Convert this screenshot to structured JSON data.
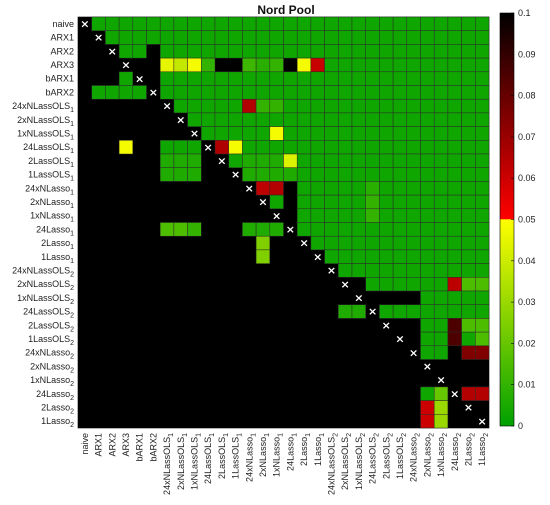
{
  "chart_data": {
    "type": "heatmap",
    "title": "Nord Pool",
    "labels": [
      "naive",
      "ARX1",
      "ARX2",
      "ARX3",
      "bARX1",
      "bARX2",
      "24xNLassOLS_1",
      "2xNLassOLS_1",
      "1xNLassOLS_1",
      "24LassOLS_1",
      "2LassOLS_1",
      "1LassOLS_1",
      "24xNLasso_1",
      "2xNLasso_1",
      "1xNLasso_1",
      "24Lasso_1",
      "2Lasso_1",
      "1Lasso_1",
      "24xNLassOLS_2",
      "2xNLassOLS_2",
      "1xNLassOLS_2",
      "24LassOLS_2",
      "2LassOLS_2",
      "1LassOLS_2",
      "24xNLasso_2",
      "2xNLasso_2",
      "1xNLasso_2",
      "24Lasso_2",
      "2Lasso_2",
      "1Lasso_2"
    ],
    "diagonal_marker": "×",
    "value_range": [
      0,
      0.1
    ],
    "colorbar_ticks": [
      "0",
      "0.01",
      "0.02",
      "0.03",
      "0.04",
      "0.05",
      "0.06",
      "0.07",
      "0.08",
      "0.09",
      "0.1"
    ],
    "colormap": [
      {
        "v": 0.0,
        "color": "#00a000"
      },
      {
        "v": 0.05,
        "color": "#ffff00"
      },
      {
        "v": 0.0501,
        "color": "#ff0000"
      },
      {
        "v": 0.1,
        "color": "#000000"
      }
    ],
    "insignificant_color": "#000000",
    "rows": [
      [
        "x",
        "0.003",
        "0.003",
        "0.003",
        "0.003",
        "0.003",
        "0.003",
        "0.003",
        "0.003",
        "0.003",
        "0.003",
        "0.003",
        "0.003",
        "0.003",
        "0.003",
        "0.003",
        "0.003",
        "0.003",
        "0.003",
        "0.003",
        "0.003",
        "0.003",
        "0.003",
        "0.003",
        "0.003",
        "0.003",
        "0.003",
        "0.003",
        "0.003",
        "0.003"
      ],
      [
        "",
        "x",
        "0.003",
        "0.003",
        "0.003",
        "0.003",
        "0.003",
        "0.003",
        "0.003",
        "0.003",
        "0.003",
        "0.003",
        "0.003",
        "0.003",
        "0.003",
        "0.003",
        "0.003",
        "0.003",
        "0.003",
        "0.003",
        "0.003",
        "0.003",
        "0.003",
        "0.003",
        "0.003",
        "0.003",
        "0.003",
        "0.003",
        "0.003",
        "0.003"
      ],
      [
        "",
        "",
        "x",
        "0.003",
        "0.003",
        "",
        "0.003",
        "0.003",
        "0.003",
        "0.003",
        "0.003",
        "0.003",
        "0.003",
        "0.003",
        "0.003",
        "0.003",
        "0.003",
        "0.003",
        "0.003",
        "0.003",
        "0.003",
        "0.003",
        "0.003",
        "0.003",
        "0.003",
        "0.003",
        "0.003",
        "0.003",
        "0.003",
        "0.003"
      ],
      [
        "",
        "",
        "",
        "x",
        "",
        "",
        "0.045",
        "0.038",
        "0.048",
        "0.010",
        "",
        "",
        "0.012",
        "0.008",
        "0.010",
        "",
        "0.048",
        "0.061",
        "0.003",
        "0.003",
        "0.003",
        "0.003",
        "0.003",
        "0.003",
        "0.003",
        "0.003",
        "0.003",
        "0.003",
        "0.003",
        "0.003"
      ],
      [
        "",
        "",
        "",
        "0.003",
        "x",
        "",
        "0.003",
        "0.003",
        "0.003",
        "0.003",
        "0.003",
        "0.003",
        "0.003",
        "0.003",
        "0.003",
        "0.003",
        "0.003",
        "0.003",
        "0.003",
        "0.003",
        "0.003",
        "0.003",
        "0.003",
        "0.003",
        "0.003",
        "0.003",
        "0.003",
        "0.003",
        "0.003",
        "0.003"
      ],
      [
        "",
        "0.003",
        "0.003",
        "0.003",
        "0.003",
        "x",
        "0.003",
        "0.003",
        "0.003",
        "0.003",
        "0.003",
        "0.003",
        "0.003",
        "0.003",
        "0.003",
        "0.003",
        "0.003",
        "0.003",
        "0.003",
        "0.003",
        "0.003",
        "0.003",
        "0.003",
        "0.003",
        "0.003",
        "0.003",
        "0.003",
        "0.003",
        "0.003",
        "0.003"
      ],
      [
        "",
        "",
        "",
        "",
        "",
        "",
        "x",
        "0.003",
        "0.003",
        "0.003",
        "0.003",
        "0.003",
        "0.065",
        "0.010",
        "0.010",
        "0.003",
        "0.003",
        "0.003",
        "0.003",
        "0.003",
        "0.003",
        "0.003",
        "0.003",
        "0.003",
        "0.003",
        "0.003",
        "0.003",
        "0.003",
        "0.003",
        "0.003"
      ],
      [
        "",
        "",
        "",
        "",
        "",
        "",
        "",
        "x",
        "0.003",
        "0.003",
        "0.003",
        "0.003",
        "0.003",
        "0.003",
        "0.003",
        "0.003",
        "0.003",
        "0.003",
        "0.003",
        "0.003",
        "0.003",
        "0.003",
        "0.003",
        "0.003",
        "0.003",
        "0.003",
        "0.003",
        "0.003",
        "0.003",
        "0.003"
      ],
      [
        "",
        "",
        "",
        "",
        "",
        "",
        "",
        "",
        "x",
        "0.003",
        "0.003",
        "0.003",
        "0.003",
        "0.003",
        "0.048",
        "0.003",
        "0.003",
        "0.003",
        "0.003",
        "0.003",
        "0.003",
        "0.003",
        "0.003",
        "0.003",
        "0.003",
        "0.003",
        "0.003",
        "0.003",
        "0.003",
        "0.003"
      ],
      [
        "",
        "",
        "",
        "0.048",
        "",
        "",
        "0.003",
        "0.003",
        "0.003",
        "x",
        "0.066",
        "0.048",
        "0.003",
        "0.003",
        "0.003",
        "0.003",
        "0.003",
        "0.003",
        "0.003",
        "0.003",
        "0.003",
        "0.003",
        "0.003",
        "0.003",
        "0.003",
        "0.003",
        "0.003",
        "0.003",
        "0.003",
        "0.003"
      ],
      [
        "",
        "",
        "",
        "",
        "",
        "",
        "0.006",
        "0.006",
        "0.006",
        "",
        "x",
        "0.003",
        "0.006",
        "0.006",
        "0.006",
        "0.043",
        "0.003",
        "0.003",
        "0.003",
        "0.003",
        "0.003",
        "0.003",
        "0.003",
        "0.003",
        "0.003",
        "0.003",
        "0.003",
        "0.003",
        "0.003",
        "0.003"
      ],
      [
        "",
        "",
        "",
        "",
        "",
        "",
        "0.006",
        "0.006",
        "0.006",
        "",
        "",
        "x",
        "0.006",
        "0.006",
        "0.006",
        "0.006",
        "0.003",
        "0.003",
        "0.003",
        "0.003",
        "0.003",
        "0.003",
        "0.003",
        "0.003",
        "0.003",
        "0.003",
        "0.003",
        "0.003",
        "0.003",
        "0.003"
      ],
      [
        "",
        "",
        "",
        "",
        "",
        "",
        "",
        "",
        "",
        "",
        "",
        "",
        "x",
        "0.063",
        "0.065",
        "",
        "0.003",
        "0.003",
        "0.003",
        "0.003",
        "0.003",
        "0.008",
        "0.003",
        "0.003",
        "0.003",
        "0.003",
        "0.003",
        "0.003",
        "0.003",
        "0.003"
      ],
      [
        "",
        "",
        "",
        "",
        "",
        "",
        "",
        "",
        "",
        "",
        "",
        "",
        "",
        "x",
        "0.003",
        "",
        "0.003",
        "0.003",
        "0.003",
        "0.003",
        "0.003",
        "0.010",
        "0.003",
        "0.003",
        "0.003",
        "0.003",
        "0.003",
        "0.003",
        "0.003",
        "0.003"
      ],
      [
        "",
        "",
        "",
        "",
        "",
        "",
        "",
        "",
        "",
        "",
        "",
        "",
        "",
        "",
        "x",
        "",
        "0.003",
        "0.003",
        "0.003",
        "0.003",
        "0.003",
        "0.010",
        "0.003",
        "0.003",
        "0.003",
        "0.003",
        "0.003",
        "0.003",
        "0.003",
        "0.003"
      ],
      [
        "",
        "",
        "",
        "",
        "",
        "",
        "0.015",
        "0.015",
        "0.010",
        "",
        "",
        "",
        "0.006",
        "0.006",
        "0.006",
        "x",
        "0.003",
        "0.003",
        "0.003",
        "0.003",
        "0.003",
        "0.003",
        "0.003",
        "0.003",
        "0.003",
        "0.003",
        "0.003",
        "0.003",
        "0.003",
        "0.003"
      ],
      [
        "",
        "",
        "",
        "",
        "",
        "",
        "",
        "",
        "",
        "",
        "",
        "",
        "",
        "0.025",
        "",
        "",
        "x",
        "0.003",
        "0.003",
        "0.003",
        "0.003",
        "0.003",
        "0.003",
        "0.003",
        "0.003",
        "0.003",
        "0.003",
        "0.003",
        "0.003",
        "0.003"
      ],
      [
        "",
        "",
        "",
        "",
        "",
        "",
        "",
        "",
        "",
        "",
        "",
        "",
        "",
        "0.025",
        "",
        "",
        "",
        "x",
        "0.003",
        "0.003",
        "0.003",
        "0.003",
        "0.003",
        "0.003",
        "0.003",
        "0.003",
        "0.003",
        "0.003",
        "0.003",
        "0.003"
      ],
      [
        "",
        "",
        "",
        "",
        "",
        "",
        "",
        "",
        "",
        "",
        "",
        "",
        "",
        "",
        "",
        "",
        "",
        "",
        "x",
        "0.003",
        "0.003",
        "0.003",
        "0.003",
        "0.003",
        "0.003",
        "0.003",
        "0.003",
        "0.003",
        "0.003",
        "0.003"
      ],
      [
        "",
        "",
        "",
        "",
        "",
        "",
        "",
        "",
        "",
        "",
        "",
        "",
        "",
        "",
        "",
        "",
        "",
        "",
        "",
        "x",
        "",
        "0.003",
        "0.003",
        "0.003",
        "0.003",
        "0.003",
        "0.003",
        "0.063",
        "0.015",
        "0.015"
      ],
      [
        "",
        "",
        "",
        "",
        "",
        "",
        "",
        "",
        "",
        "",
        "",
        "",
        "",
        "",
        "",
        "",
        "",
        "",
        "",
        "",
        "x",
        "",
        "",
        "",
        "",
        "0.003",
        "0.003",
        "0.003",
        "0.003",
        "0.003"
      ],
      [
        "",
        "",
        "",
        "",
        "",
        "",
        "",
        "",
        "",
        "",
        "",
        "",
        "",
        "",
        "",
        "",
        "",
        "",
        "",
        "0.006",
        "0.006",
        "x",
        "0.003",
        "0.003",
        "0.003",
        "0.003",
        "0.003",
        "0.003",
        "0.003",
        "0.003"
      ],
      [
        "",
        "",
        "",
        "",
        "",
        "",
        "",
        "",
        "",
        "",
        "",
        "",
        "",
        "",
        "",
        "",
        "",
        "",
        "",
        "",
        "",
        "",
        "x",
        "",
        "",
        "0.003",
        "0.003",
        "0.085",
        "0.015",
        "0.015"
      ],
      [
        "",
        "",
        "",
        "",
        "",
        "",
        "",
        "",
        "",
        "",
        "",
        "",
        "",
        "",
        "",
        "",
        "",
        "",
        "",
        "",
        "",
        "",
        "",
        "x",
        "",
        "0.003",
        "0.003",
        "0.085",
        "0.003",
        "0.015"
      ],
      [
        "",
        "",
        "",
        "",
        "",
        "",
        "",
        "",
        "",
        "",
        "",
        "",
        "",
        "",
        "",
        "",
        "",
        "",
        "",
        "",
        "",
        "",
        "",
        "",
        "x",
        "0.003",
        "0.003",
        "",
        "0.075",
        "0.075"
      ],
      [
        "",
        "",
        "",
        "",
        "",
        "",
        "",
        "",
        "",
        "",
        "",
        "",
        "",
        "",
        "",
        "",
        "",
        "",
        "",
        "",
        "",
        "",
        "",
        "",
        "",
        "x",
        "",
        "",
        "",
        ""
      ],
      [
        "",
        "",
        "",
        "",
        "",
        "",
        "",
        "",
        "",
        "",
        "",
        "",
        "",
        "",
        "",
        "",
        "",
        "",
        "",
        "",
        "",
        "",
        "",
        "",
        "",
        "",
        "x",
        "",
        "",
        ""
      ],
      [
        "",
        "",
        "",
        "",
        "",
        "",
        "",
        "",
        "",
        "",
        "",
        "",
        "",
        "",
        "",
        "",
        "",
        "",
        "",
        "",
        "",
        "",
        "",
        "",
        "",
        "0.003",
        "0.020",
        "x",
        "0.065",
        "0.065"
      ],
      [
        "",
        "",
        "",
        "",
        "",
        "",
        "",
        "",
        "",
        "",
        "",
        "",
        "",
        "",
        "",
        "",
        "",
        "",
        "",
        "",
        "",
        "",
        "",
        "",
        "",
        "0.060",
        "0.030",
        "",
        "x",
        ""
      ],
      [
        "",
        "",
        "",
        "",
        "",
        "",
        "",
        "",
        "",
        "",
        "",
        "",
        "",
        "",
        "",
        "",
        "",
        "",
        "",
        "",
        "",
        "",
        "",
        "",
        "",
        "0.060",
        "0.030",
        "",
        "",
        "x"
      ]
    ]
  }
}
